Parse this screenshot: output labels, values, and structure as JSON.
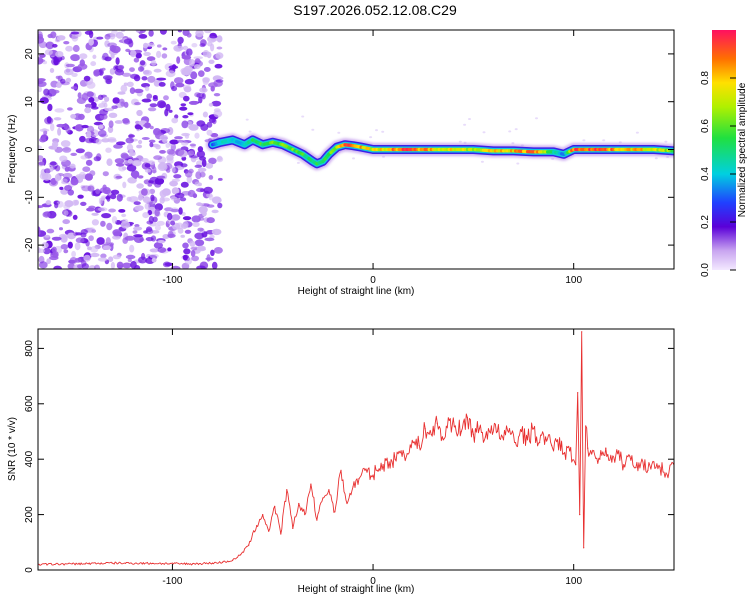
{
  "title": "S197.2026.052.12.08.C29",
  "chart_data": [
    {
      "type": "heatmap",
      "title": "S197.2026.052.12.08.C29",
      "xlabel": "Height of straight line (km)",
      "ylabel": "Frequency (Hz)",
      "xlim": [
        -167,
        150
      ],
      "ylim": [
        -25,
        25
      ],
      "xticks": [
        -100,
        0,
        100
      ],
      "xtick_labels": [
        "-100",
        "0",
        "100"
      ],
      "yticks": [
        -20,
        -10,
        0,
        10,
        20
      ],
      "ytick_labels": [
        "-20",
        "-10",
        "0",
        "10",
        "20"
      ],
      "noise_region_x": [
        -167,
        -76
      ],
      "colorbar": {
        "label": "Normalized spectral amplitude",
        "range": [
          0.0,
          1.0
        ],
        "ticks": [
          0.0,
          0.2,
          0.4,
          0.6,
          0.8
        ],
        "tick_labels": [
          "0.0",
          "0.2",
          "0.4",
          "0.6",
          "0.8"
        ]
      },
      "ridge": {
        "x": [
          -80,
          -76,
          -70,
          -64,
          -60,
          -55,
          -50,
          -45,
          -40,
          -35,
          -30,
          -28,
          -25,
          -22,
          -18,
          -14,
          -10,
          -6,
          0,
          10,
          20,
          30,
          40,
          50,
          60,
          70,
          80,
          90,
          95,
          100,
          110,
          120,
          130,
          140,
          150
        ],
        "freq": [
          1.0,
          1.5,
          2.0,
          1.0,
          2.0,
          1.0,
          1.5,
          1.0,
          0.0,
          -1.0,
          -2.5,
          -3.0,
          -2.5,
          -1.0,
          0.5,
          1.0,
          0.8,
          0.5,
          0.0,
          0.0,
          0.0,
          0.0,
          0.0,
          0.0,
          -0.3,
          -0.3,
          -0.5,
          -0.5,
          -1.0,
          0.0,
          0.0,
          0.0,
          0.0,
          0.0,
          -0.3
        ],
        "amplitude": [
          0.3,
          0.4,
          0.4,
          0.4,
          0.5,
          0.55,
          0.6,
          0.6,
          0.6,
          0.55,
          0.5,
          0.55,
          0.5,
          0.55,
          0.7,
          0.9,
          0.95,
          0.85,
          0.7,
          0.85,
          0.9,
          0.8,
          0.75,
          0.7,
          0.75,
          0.8,
          0.9,
          0.5,
          0.3,
          0.9,
          0.95,
          0.85,
          0.8,
          0.75,
          0.6
        ]
      }
    },
    {
      "type": "line",
      "xlabel": "Height of straight line (km)",
      "ylabel": "SNR (10 * v/v)",
      "xlim": [
        -167,
        150
      ],
      "ylim": [
        0,
        870
      ],
      "xticks": [
        -100,
        0,
        100
      ],
      "xtick_labels": [
        "-100",
        "0",
        "100"
      ],
      "yticks": [
        0,
        200,
        400,
        600,
        800
      ],
      "ytick_labels": [
        "0",
        "200",
        "400",
        "600",
        "800"
      ],
      "series": [
        {
          "name": "SNR",
          "color": "#e83030",
          "x": [
            -167,
            -150,
            -130,
            -110,
            -90,
            -80,
            -75,
            -70,
            -66,
            -62,
            -58,
            -55,
            -52,
            -49,
            -46,
            -43,
            -40,
            -37,
            -34,
            -31,
            -28,
            -25,
            -22,
            -19,
            -16,
            -13,
            -10,
            -7,
            -4,
            -1,
            2,
            5,
            8,
            11,
            14,
            17,
            20,
            23,
            26,
            29,
            32,
            35,
            38,
            41,
            44,
            47,
            50,
            53,
            56,
            59,
            62,
            65,
            68,
            71,
            74,
            77,
            80,
            83,
            86,
            89,
            92,
            95,
            98,
            101,
            102,
            103,
            104,
            105,
            106,
            107,
            108,
            110,
            113,
            116,
            119,
            122,
            125,
            128,
            131,
            134,
            137,
            140,
            143,
            146,
            150
          ],
          "y": [
            20,
            22,
            25,
            24,
            22,
            25,
            28,
            35,
            55,
            90,
            160,
            200,
            140,
            230,
            130,
            290,
            150,
            240,
            200,
            310,
            180,
            260,
            290,
            210,
            360,
            240,
            300,
            330,
            360,
            340,
            360,
            380,
            390,
            400,
            430,
            420,
            460,
            450,
            510,
            490,
            530,
            470,
            540,
            520,
            500,
            550,
            490,
            510,
            480,
            520,
            500,
            470,
            510,
            460,
            500,
            470,
            510,
            460,
            480,
            450,
            470,
            420,
            430,
            380,
            640,
            200,
            860,
            80,
            520,
            440,
            420,
            430,
            400,
            440,
            390,
            420,
            380,
            410,
            370,
            400,
            360,
            390,
            370,
            350,
            380
          ]
        }
      ]
    }
  ]
}
